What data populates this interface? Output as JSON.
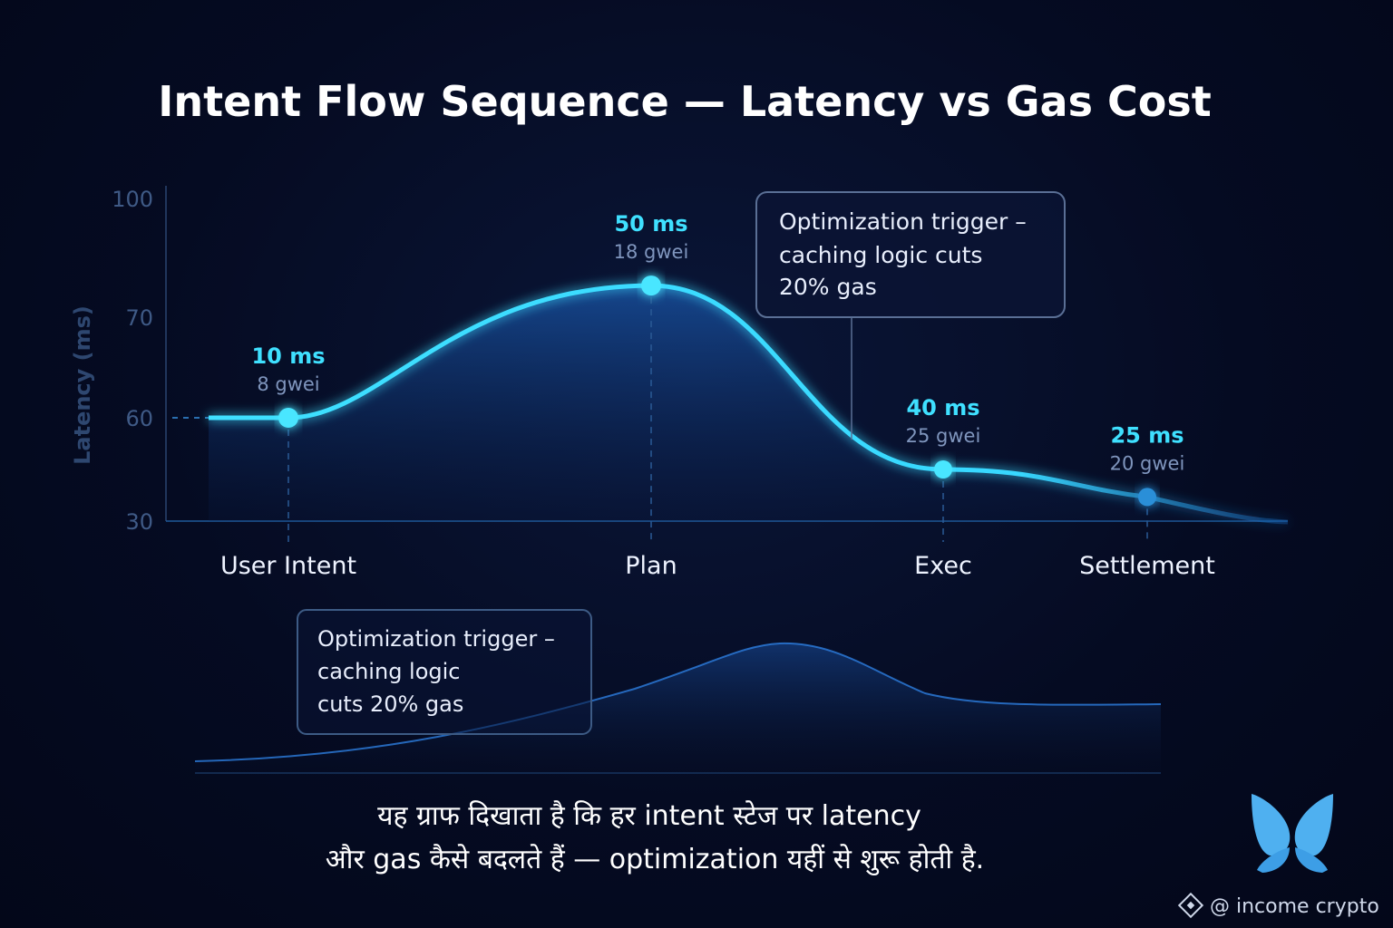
{
  "chart_data": {
    "type": "line",
    "title": "Intent Flow Sequence — Latency vs Gas Cost",
    "ylabel": "Latency (ms)",
    "xlabel": "",
    "yticks": [
      100,
      70,
      60,
      30
    ],
    "categories": [
      "User Intent",
      "Plan",
      "Exec",
      "Settlement"
    ],
    "points": [
      {
        "stage": "User Intent",
        "latency_label": "10 ms",
        "gas_label": "8 gwei",
        "y": 60
      },
      {
        "stage": "Plan",
        "latency_label": "50 ms",
        "gas_label": "18 gwei",
        "y": 78
      },
      {
        "stage": "Exec",
        "latency_label": "40 ms",
        "gas_label": "25 gwei",
        "y": 45
      },
      {
        "stage": "Settlement",
        "latency_label": "25 ms",
        "gas_label": "20 gwei",
        "y": 37
      }
    ],
    "annotations": [
      {
        "lines": [
          "Optimization trigger –",
          "caching logic cuts",
          "20% gas"
        ]
      },
      {
        "lines": [
          "Optimization trigger –",
          "caching logic",
          "cuts 20% gas"
        ]
      }
    ],
    "grid": false,
    "legend": "none"
  },
  "caption": {
    "line1": "यह ग्राफ दिखाता है कि हर intent स्टेज पर latency",
    "line2": "और gas  कैसे बदलते हैं — optimization यहीं से शुरू होती है."
  },
  "watermark": {
    "text": "@ income crypto"
  },
  "colors": {
    "accent": "#3fe0ff",
    "background": "#050b22",
    "callout_border": "#5a6f95"
  }
}
